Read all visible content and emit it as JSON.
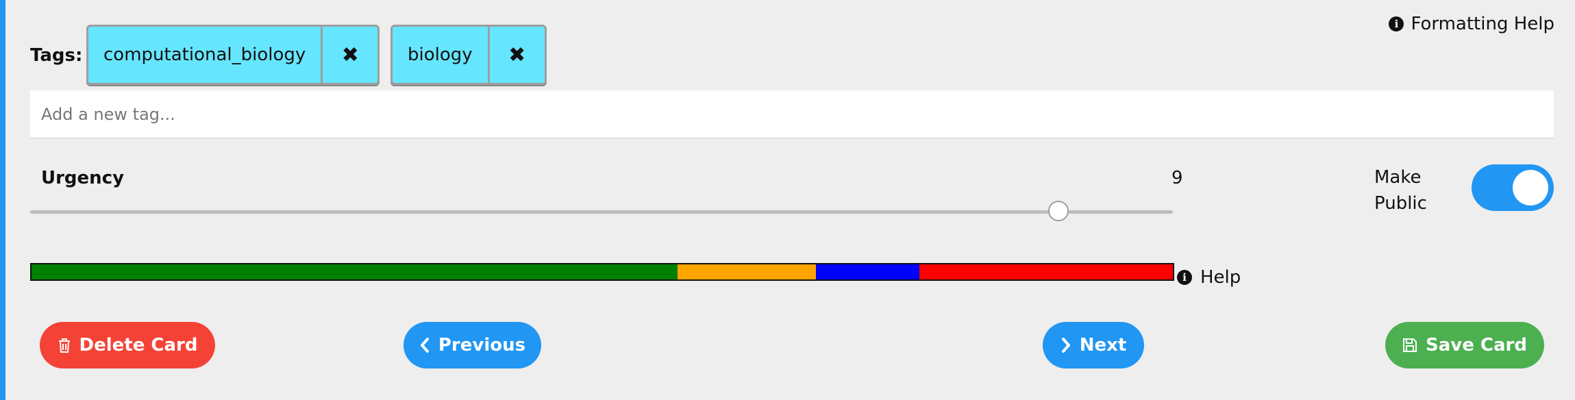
{
  "formatting_help": {
    "label": "Formatting Help",
    "icon": "info-circle-icon"
  },
  "tags": {
    "label": "Tags:",
    "items": [
      {
        "name": "computational_biology",
        "remove_icon": "close-icon"
      },
      {
        "name": "biology",
        "remove_icon": "close-icon"
      }
    ],
    "input_placeholder": "Add a new tag..."
  },
  "urgency": {
    "label": "Urgency",
    "value": "9",
    "min": 0,
    "max": 10,
    "slider_value": 9
  },
  "make_public": {
    "label_line1": "Make",
    "label_line2": "Public",
    "on": true
  },
  "urgency_bar": {
    "segments": [
      {
        "color": "#008000",
        "share": 0.566
      },
      {
        "color": "#FFA500",
        "share": 0.121
      },
      {
        "color": "#0000FF",
        "share": 0.091
      },
      {
        "color": "#FF0000",
        "share": 0.222
      }
    ]
  },
  "help": {
    "label": "Help",
    "icon": "info-circle-icon"
  },
  "buttons": {
    "delete": {
      "label": "Delete Card",
      "icon": "trash-icon",
      "color": "#f44336"
    },
    "previous": {
      "label": "Previous",
      "icon": "chevron-left-icon",
      "color": "#2196F3"
    },
    "next": {
      "label": "Next",
      "icon": "chevron-right-icon",
      "color": "#2196F3"
    },
    "save": {
      "label": "Save Card",
      "icon": "floppy-disk-icon",
      "color": "#4CAF50"
    }
  },
  "colors": {
    "accent": "#2196F3",
    "tag_bg": "#66e5ff",
    "background": "#eeeeee"
  }
}
